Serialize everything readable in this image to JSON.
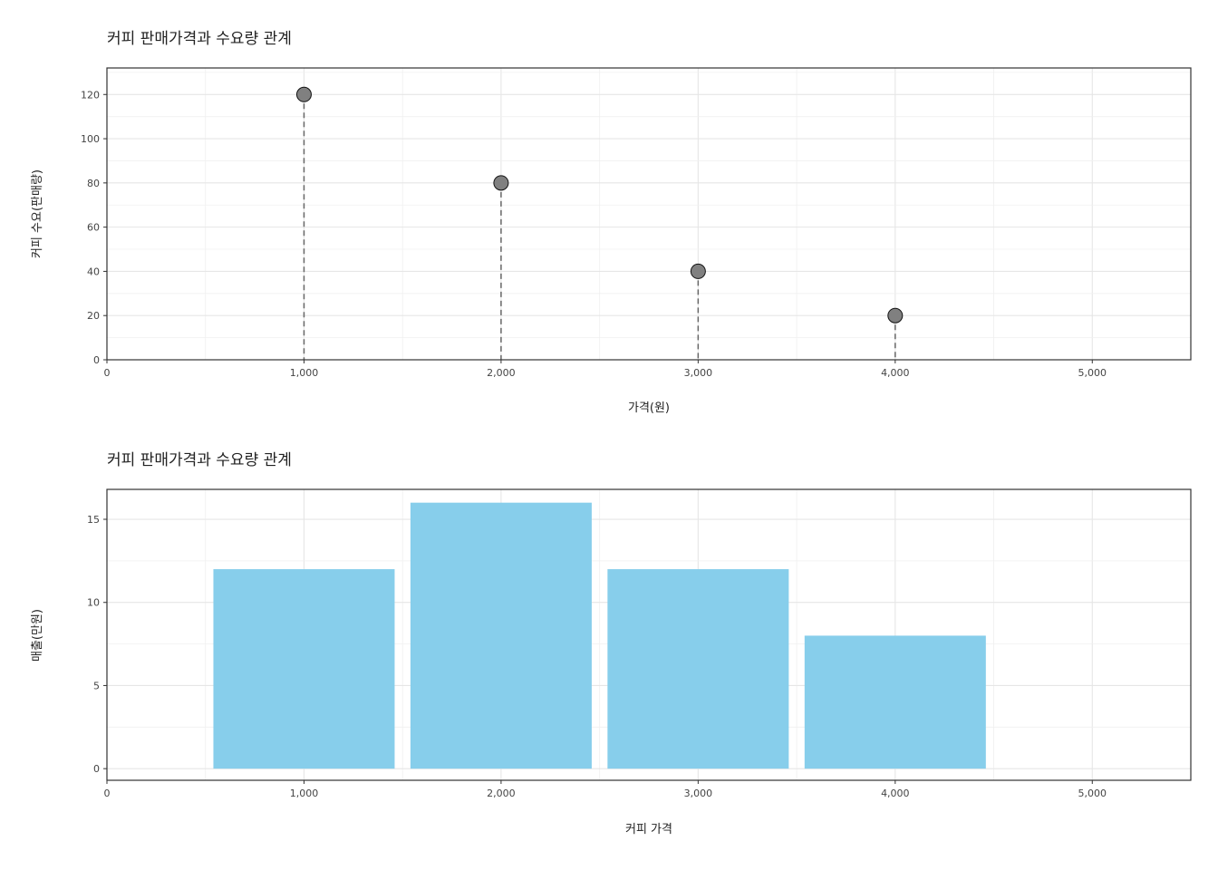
{
  "chart_data": [
    {
      "type": "scatter",
      "title": "커피 판매가격과 수요량 관계",
      "xlabel": "가격(원)",
      "ylabel": "커피 수요(판매량)",
      "x": [
        1000,
        2000,
        3000,
        4000
      ],
      "y": [
        120,
        80,
        40,
        20
      ],
      "xlim": [
        0,
        5500
      ],
      "ylim": [
        0,
        132
      ],
      "x_ticks": [
        0,
        1000,
        2000,
        3000,
        4000,
        5000
      ],
      "x_tick_labels": [
        "0",
        "1,000",
        "2,000",
        "3,000",
        "4,000",
        "5,000"
      ],
      "y_ticks": [
        0,
        20,
        40,
        60,
        80,
        100,
        120
      ],
      "y_tick_labels": [
        "0",
        "20",
        "40",
        "60",
        "80",
        "100",
        "120"
      ],
      "point_color": "#808080",
      "drop_lines": "dashed",
      "grid": true
    },
    {
      "type": "bar",
      "title": "커피 판매가격과 수요량 관계",
      "xlabel": "커피 가격",
      "ylabel": "매출(만원)",
      "x": [
        1000,
        2000,
        3000,
        4000
      ],
      "values": [
        12,
        16,
        12,
        8
      ],
      "xlim": [
        0,
        5500
      ],
      "ylim": [
        -0.7,
        16.8
      ],
      "x_ticks": [
        0,
        1000,
        2000,
        3000,
        4000,
        5000
      ],
      "x_tick_labels": [
        "0",
        "1,000",
        "2,000",
        "3,000",
        "4,000",
        "5,000"
      ],
      "y_ticks": [
        0,
        5,
        10,
        15
      ],
      "y_tick_labels": [
        "0",
        "5",
        "10",
        "15"
      ],
      "bar_color": "#87CEEB",
      "grid": true
    }
  ]
}
